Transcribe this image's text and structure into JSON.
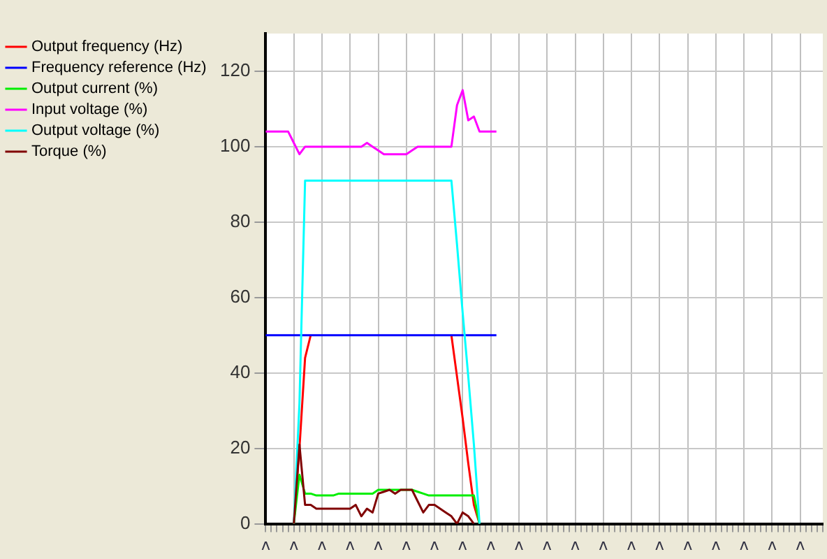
{
  "chart_data": {
    "type": "line",
    "legend": "left",
    "grid": true,
    "marker": "none",
    "line_style": "solid",
    "categories": [
      "ʌ",
      null,
      null,
      null,
      null,
      "ʌ",
      null,
      null,
      null,
      null,
      "ʌ",
      null,
      null,
      null,
      null,
      "ʌ",
      null,
      null,
      null,
      null,
      "ʌ",
      null,
      null,
      null,
      null,
      "ʌ",
      null,
      null,
      null,
      null,
      "ʌ",
      null,
      null,
      null,
      null,
      "ʌ",
      null,
      null,
      null,
      null,
      "ʌ",
      null,
      null,
      null,
      null,
      "ʌ",
      null,
      null,
      null,
      null,
      "ʌ",
      null,
      null,
      null,
      null,
      "ʌ",
      null,
      null,
      null,
      null,
      "ʌ",
      null,
      null,
      null,
      null,
      "ʌ",
      null,
      null,
      null,
      null,
      "ʌ",
      null,
      null,
      null,
      null,
      "ʌ",
      null,
      null,
      null,
      null,
      "ʌ",
      null,
      null,
      null,
      null,
      "ʌ",
      null,
      null,
      null,
      null,
      "ʌ",
      null,
      null,
      null,
      null,
      "ʌ",
      null,
      null,
      null,
      null
    ],
    "ylim": [
      0,
      130
    ],
    "yticks": [
      0,
      20,
      40,
      60,
      80,
      100,
      120
    ],
    "series": [
      {
        "name": "Output frequency (Hz)",
        "color": "#ff0000",
        "values": [
          null,
          null,
          null,
          null,
          null,
          0,
          20,
          44,
          50,
          null,
          null,
          null,
          null,
          null,
          null,
          null,
          null,
          null,
          null,
          null,
          null,
          null,
          null,
          null,
          null,
          null,
          null,
          null,
          null,
          null,
          null,
          null,
          null,
          50,
          39,
          28,
          16,
          5,
          0,
          null,
          null,
          null,
          null,
          null,
          null,
          null,
          null,
          null,
          null,
          null,
          null,
          null,
          null,
          null,
          null,
          null,
          null,
          null,
          null,
          null,
          null,
          null,
          null,
          null,
          null,
          null,
          null,
          null,
          null,
          null,
          null,
          null,
          null,
          null,
          null,
          null,
          null,
          null,
          null,
          null,
          null,
          null,
          null,
          null,
          null,
          null,
          null,
          null,
          null,
          null,
          null,
          null,
          null,
          null,
          null,
          null,
          null,
          null,
          null,
          null
        ]
      },
      {
        "name": "Frequency reference (Hz)",
        "color": "#0000ff",
        "values": [
          50,
          50,
          50,
          50,
          50,
          50,
          50,
          50,
          50,
          50,
          50,
          50,
          50,
          50,
          50,
          50,
          50,
          50,
          50,
          50,
          50,
          50,
          50,
          50,
          50,
          50,
          50,
          50,
          50,
          50,
          50,
          50,
          50,
          50,
          50,
          50,
          50,
          50,
          50,
          50,
          50,
          50,
          null,
          null,
          null,
          null,
          null,
          null,
          null,
          null,
          null,
          null,
          null,
          null,
          null,
          null,
          null,
          null,
          null,
          null,
          null,
          null,
          null,
          null,
          null,
          null,
          null,
          null,
          null,
          null,
          null,
          null,
          null,
          null,
          null,
          null,
          null,
          null,
          null,
          null,
          null,
          null,
          null,
          null,
          null,
          null,
          null,
          null,
          null,
          null,
          null,
          null,
          null,
          null,
          null,
          null,
          null,
          null,
          null,
          null
        ]
      },
      {
        "name": "Output current (%)",
        "color": "#00ee00",
        "values": [
          null,
          null,
          null,
          null,
          null,
          0,
          13,
          8,
          8,
          7.5,
          7.5,
          7.5,
          7.5,
          8,
          8,
          8,
          8,
          8,
          8,
          8,
          9,
          9,
          9,
          9,
          9,
          9,
          9,
          8.5,
          8,
          7.5,
          7.5,
          7.5,
          7.5,
          7.5,
          7.5,
          7.5,
          7.5,
          7.5,
          0,
          null,
          null,
          null,
          null,
          null,
          null,
          null,
          null,
          null,
          null,
          null,
          null,
          null,
          null,
          null,
          null,
          null,
          null,
          null,
          null,
          null,
          null,
          null,
          null,
          null,
          null,
          null,
          null,
          null,
          null,
          null,
          null,
          null,
          null,
          null,
          null,
          null,
          null,
          null,
          null,
          null,
          null,
          null,
          null,
          null,
          null,
          null,
          null,
          null,
          null,
          null,
          null,
          null,
          null,
          null,
          null,
          null,
          null,
          null,
          null,
          null
        ]
      },
      {
        "name": "Input voltage (%)",
        "color": "#ff00ff",
        "values": [
          104,
          104,
          104,
          104,
          104,
          101,
          98,
          100,
          100,
          100,
          100,
          100,
          100,
          100,
          100,
          100,
          100,
          100,
          101,
          100,
          99,
          98,
          98,
          98,
          98,
          98,
          99,
          100,
          100,
          100,
          100,
          100,
          100,
          100,
          111,
          115,
          107,
          108,
          104,
          104,
          104,
          104,
          null,
          null,
          null,
          null,
          null,
          null,
          null,
          null,
          null,
          null,
          null,
          null,
          null,
          null,
          null,
          null,
          null,
          null,
          null,
          null,
          null,
          null,
          null,
          null,
          null,
          null,
          null,
          null,
          null,
          null,
          null,
          null,
          null,
          null,
          null,
          null,
          null,
          null,
          null,
          null,
          null,
          null,
          null,
          null,
          null,
          null,
          null,
          null,
          null,
          null,
          null,
          null,
          null,
          null,
          null,
          null,
          null,
          null
        ]
      },
      {
        "name": "Output voltage (%)",
        "color": "#00ffff",
        "values": [
          null,
          null,
          null,
          null,
          null,
          0,
          32,
          91,
          91,
          91,
          91,
          91,
          91,
          91,
          91,
          91,
          91,
          91,
          91,
          91,
          91,
          91,
          91,
          91,
          91,
          91,
          91,
          91,
          91,
          91,
          91,
          91,
          91,
          91,
          74,
          56,
          39,
          21,
          0,
          null,
          null,
          null,
          null,
          null,
          null,
          null,
          null,
          null,
          null,
          null,
          null,
          null,
          null,
          null,
          null,
          null,
          null,
          null,
          null,
          null,
          null,
          null,
          null,
          null,
          null,
          null,
          null,
          null,
          null,
          null,
          null,
          null,
          null,
          null,
          null,
          null,
          null,
          null,
          null,
          null,
          null,
          null,
          null,
          null,
          null,
          null,
          null,
          null,
          null,
          null,
          null,
          null,
          null,
          null,
          null,
          null,
          null,
          null,
          null,
          null
        ]
      },
      {
        "name": "Torque (%)",
        "color": "#800000",
        "values": [
          null,
          null,
          null,
          null,
          null,
          0,
          21,
          5,
          5,
          4,
          4,
          4,
          4,
          4,
          4,
          4,
          5,
          2,
          4,
          3,
          8,
          8.5,
          9,
          8,
          9,
          9,
          9,
          6,
          3,
          5,
          5,
          4,
          3,
          2,
          0,
          3,
          2,
          0,
          null,
          null,
          null,
          null,
          null,
          null,
          null,
          null,
          null,
          null,
          null,
          null,
          null,
          null,
          null,
          null,
          null,
          null,
          null,
          null,
          null,
          null,
          null,
          null,
          null,
          null,
          null,
          null,
          null,
          null,
          null,
          null,
          null,
          null,
          null,
          null,
          null,
          null,
          null,
          null,
          null,
          null,
          null,
          null,
          null,
          null,
          null,
          null,
          null,
          null,
          null,
          null,
          null,
          null,
          null,
          null,
          null,
          null,
          null,
          null,
          null,
          null
        ]
      }
    ]
  }
}
